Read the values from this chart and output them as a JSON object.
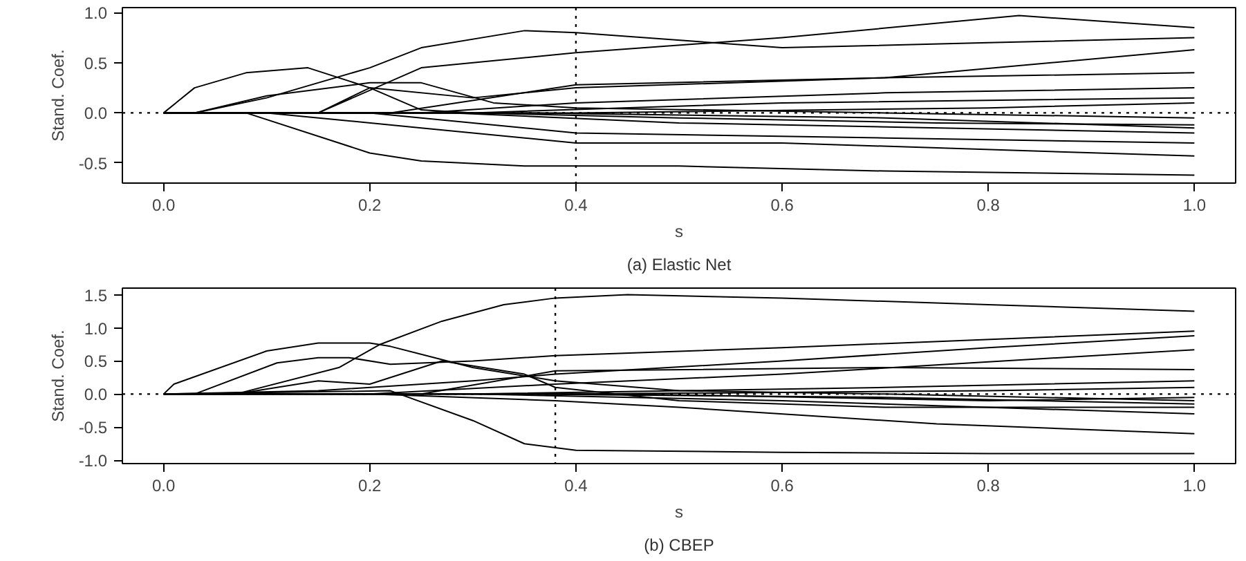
{
  "chart_data": [
    {
      "type": "line",
      "title": "(a) Elastic Net",
      "xlabel": "s",
      "ylabel": "Stand. Coef.",
      "xlim": [
        -0.04,
        1.04
      ],
      "ylim": [
        -0.7,
        1.05
      ],
      "xticks": [
        {
          "value": 0,
          "label": "0.0"
        },
        {
          "value": 0.2,
          "label": "0.2"
        },
        {
          "value": 0.4,
          "label": "0.4"
        },
        {
          "value": 0.6,
          "label": "0.6"
        },
        {
          "value": 0.8,
          "label": "0.8"
        },
        {
          "value": 1,
          "label": "1.0"
        }
      ],
      "yticks": [
        {
          "value": -0.5,
          "label": "-0.5"
        },
        {
          "value": 0,
          "label": "0.0"
        },
        {
          "value": 0.5,
          "label": "0.5"
        },
        {
          "value": 1,
          "label": "1.0"
        }
      ],
      "grid": false,
      "line_style": "solid",
      "ref_lines": [
        {
          "axis": "x",
          "value": 0.4,
          "line_style": "dotted",
          "color": "#000000"
        },
        {
          "axis": "y",
          "value": 0,
          "line_style": "dotted",
          "color": "#000000"
        }
      ],
      "series": [
        {
          "color": "#000000",
          "x": [
            0,
            0.03,
            0.1,
            0.2,
            0.25,
            0.35,
            0.4,
            0.6,
            0.8,
            1.0
          ],
          "values": [
            0,
            0,
            0.15,
            0.45,
            0.65,
            0.82,
            0.8,
            0.65,
            0.7,
            0.75
          ]
        },
        {
          "color": "#000000",
          "x": [
            0,
            0.15,
            0.25,
            0.4,
            0.6,
            0.83,
            1.0
          ],
          "values": [
            0,
            0,
            0.45,
            0.6,
            0.75,
            0.97,
            0.85
          ]
        },
        {
          "color": "#000000",
          "x": [
            0,
            0.03,
            0.08,
            0.14,
            0.2,
            0.25,
            0.3,
            0.5,
            0.75,
            1.0
          ],
          "values": [
            0,
            0.25,
            0.4,
            0.45,
            0.25,
            0.03,
            0,
            -0.05,
            -0.1,
            -0.12
          ]
        },
        {
          "color": "#000000",
          "x": [
            0,
            0.03,
            0.1,
            0.2,
            0.25,
            0.32,
            0.4,
            0.7,
            1.0
          ],
          "values": [
            0,
            0,
            0.17,
            0.3,
            0.3,
            0.1,
            0.05,
            0.0,
            -0.05
          ]
        },
        {
          "color": "#000000",
          "x": [
            0,
            0.15,
            0.2,
            0.3,
            0.4,
            0.7,
            1.0
          ],
          "values": [
            0,
            0,
            0.25,
            0.15,
            0.25,
            0.35,
            0.63
          ]
        },
        {
          "color": "#000000",
          "x": [
            0,
            0.08,
            0.2,
            0.25,
            0.35,
            0.5,
            0.7,
            1.0
          ],
          "values": [
            0,
            0,
            -0.4,
            -0.48,
            -0.53,
            -0.53,
            -0.58,
            -0.62
          ]
        },
        {
          "color": "#000000",
          "x": [
            0,
            0.22,
            0.4,
            0.7,
            1.0
          ],
          "values": [
            0,
            0,
            0.28,
            0.35,
            0.4
          ]
        },
        {
          "color": "#000000",
          "x": [
            0,
            0.1,
            0.25,
            0.4,
            0.6,
            1.0
          ],
          "values": [
            0,
            0,
            -0.15,
            -0.3,
            -0.3,
            -0.43
          ]
        },
        {
          "color": "#000000",
          "x": [
            0,
            0.2,
            0.4,
            0.7,
            1.0
          ],
          "values": [
            0,
            0,
            -0.2,
            -0.25,
            -0.3
          ]
        },
        {
          "color": "#000000",
          "x": [
            0,
            0.25,
            0.4,
            0.7,
            1.0
          ],
          "values": [
            0,
            0,
            0.1,
            0.2,
            0.25
          ]
        },
        {
          "color": "#000000",
          "x": [
            0,
            0.28,
            0.5,
            1.0
          ],
          "values": [
            0,
            0,
            -0.1,
            -0.2
          ]
        },
        {
          "color": "#000000",
          "x": [
            0,
            0.3,
            0.6,
            1.0
          ],
          "values": [
            0,
            0,
            0.1,
            0.15
          ]
        },
        {
          "color": "#000000",
          "x": [
            0,
            0.35,
            0.7,
            1.0
          ],
          "values": [
            0,
            0,
            -0.05,
            -0.15
          ]
        },
        {
          "color": "#000000",
          "x": [
            0,
            0.4,
            0.8,
            1.0
          ],
          "values": [
            0,
            0,
            0.05,
            0.1
          ]
        }
      ]
    },
    {
      "type": "line",
      "title": "(b) CBEP",
      "xlabel": "s",
      "ylabel": "Stand. Coef.",
      "xlim": [
        -0.04,
        1.04
      ],
      "ylim": [
        -1.05,
        1.6
      ],
      "xticks": [
        {
          "value": 0,
          "label": "0.0"
        },
        {
          "value": 0.2,
          "label": "0.2"
        },
        {
          "value": 0.4,
          "label": "0.4"
        },
        {
          "value": 0.6,
          "label": "0.6"
        },
        {
          "value": 0.8,
          "label": "0.8"
        },
        {
          "value": 1,
          "label": "1.0"
        }
      ],
      "yticks": [
        {
          "value": -1,
          "label": "-1.0"
        },
        {
          "value": -0.5,
          "label": "-0.5"
        },
        {
          "value": 0,
          "label": "0.0"
        },
        {
          "value": 0.5,
          "label": "0.5"
        },
        {
          "value": 1,
          "label": "1.0"
        },
        {
          "value": 1.5,
          "label": "1.5"
        }
      ],
      "grid": false,
      "line_style": "solid",
      "ref_lines": [
        {
          "axis": "x",
          "value": 0.38,
          "line_style": "dotted",
          "color": "#000000"
        },
        {
          "axis": "y",
          "value": 0,
          "line_style": "dotted",
          "color": "#000000"
        }
      ],
      "series": [
        {
          "color": "#000000",
          "x": [
            0,
            0.07,
            0.17,
            0.21,
            0.27,
            0.33,
            0.38,
            0.45,
            0.6,
            0.8,
            1.0
          ],
          "values": [
            0,
            0,
            0.4,
            0.75,
            1.1,
            1.35,
            1.45,
            1.5,
            1.45,
            1.35,
            1.25
          ]
        },
        {
          "color": "#000000",
          "x": [
            0,
            0.01,
            0.1,
            0.15,
            0.2,
            0.22,
            0.3,
            0.38,
            0.5,
            0.7,
            1.0
          ],
          "values": [
            0,
            0.15,
            0.65,
            0.77,
            0.77,
            0.72,
            0.4,
            0.2,
            0.05,
            0,
            -0.1
          ]
        },
        {
          "color": "#000000",
          "x": [
            0,
            0.03,
            0.11,
            0.15,
            0.18,
            0.22,
            0.3,
            0.38,
            0.6,
            1.0
          ],
          "values": [
            0,
            0,
            0.47,
            0.55,
            0.55,
            0.45,
            0.5,
            0.58,
            0.7,
            0.95
          ]
        },
        {
          "color": "#000000",
          "x": [
            0,
            0.07,
            0.15,
            0.2,
            0.27,
            0.35,
            0.38,
            0.5,
            0.7,
            1.0
          ],
          "values": [
            0,
            0,
            0.2,
            0.15,
            0.5,
            0.3,
            0.1,
            -0.1,
            -0.2,
            -0.2
          ]
        },
        {
          "color": "#000000",
          "x": [
            0,
            0.22,
            0.3,
            0.35,
            0.4,
            0.6,
            0.8,
            1.0
          ],
          "values": [
            0,
            0.05,
            -0.4,
            -0.75,
            -0.85,
            -0.88,
            -0.9,
            -0.9
          ]
        },
        {
          "color": "#000000",
          "x": [
            0,
            0.15,
            0.3,
            0.38,
            0.6,
            0.8,
            1.0
          ],
          "values": [
            0,
            0.05,
            0.2,
            0.3,
            0.5,
            0.7,
            0.88
          ]
        },
        {
          "color": "#000000",
          "x": [
            0,
            0.2,
            0.38,
            0.6,
            1.0
          ],
          "values": [
            0,
            0,
            0.15,
            0.3,
            0.67
          ]
        },
        {
          "color": "#000000",
          "x": [
            0,
            0.2,
            0.38,
            0.5,
            0.75,
            1.0
          ],
          "values": [
            0,
            0,
            -0.1,
            -0.2,
            -0.45,
            -0.6
          ]
        },
        {
          "color": "#000000",
          "x": [
            0,
            0.25,
            0.38,
            0.7,
            1.0
          ],
          "values": [
            0,
            0,
            0.35,
            0.4,
            0.37
          ]
        },
        {
          "color": "#000000",
          "x": [
            0,
            0.3,
            0.6,
            1.0
          ],
          "values": [
            0,
            0,
            -0.1,
            -0.3
          ]
        },
        {
          "color": "#000000",
          "x": [
            0,
            0.3,
            0.7,
            1.0
          ],
          "values": [
            0,
            0,
            0.1,
            0.2
          ]
        },
        {
          "color": "#000000",
          "x": [
            0,
            0.35,
            0.7,
            1.0
          ],
          "values": [
            0,
            0,
            -0.05,
            -0.15
          ]
        },
        {
          "color": "#000000",
          "x": [
            0,
            0.4,
            0.8,
            1.0
          ],
          "values": [
            0,
            0,
            0.05,
            0.1
          ]
        },
        {
          "color": "#000000",
          "x": [
            0,
            0.45,
            0.8,
            1.0
          ],
          "values": [
            0,
            0,
            -0.1,
            -0.05
          ]
        }
      ]
    }
  ]
}
